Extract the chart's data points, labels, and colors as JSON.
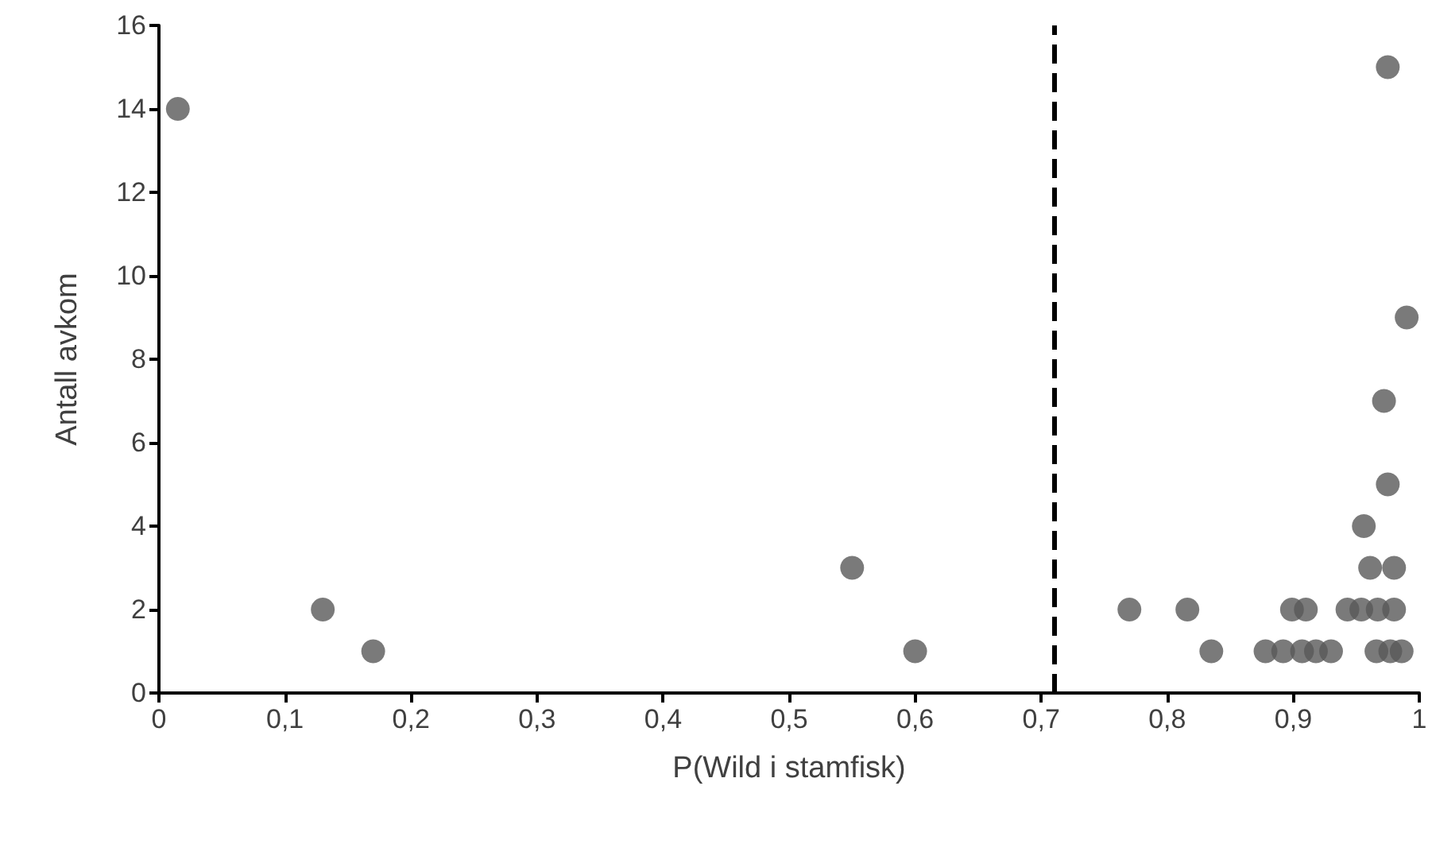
{
  "chart_data": {
    "type": "scatter",
    "xlabel": "P(Wild i stamfisk)",
    "ylabel": "Antall avkom",
    "series": [
      {
        "color": "#595959",
        "x": [
          0.015,
          0.13,
          0.17,
          0.55,
          0.6,
          0.77,
          0.816,
          0.835,
          0.878,
          0.892,
          0.907,
          0.918,
          0.93,
          0.966,
          0.977,
          0.986,
          0.899,
          0.91,
          0.943,
          0.954,
          0.967,
          0.98,
          0.961,
          0.98,
          0.956,
          0.975,
          0.972,
          0.99,
          0.975
        ],
        "values": [
          14,
          2,
          1,
          3,
          1,
          2,
          2,
          1,
          1,
          1,
          1,
          1,
          1,
          1,
          1,
          1,
          2,
          2,
          2,
          2,
          2,
          2,
          3,
          3,
          4,
          5,
          7,
          9,
          15
        ]
      }
    ],
    "xlim": [
      0,
      1
    ],
    "xticks": [
      0,
      {
        "value": 0.1,
        "label": "0,1"
      },
      {
        "value": 0.2,
        "label": "0,2"
      },
      {
        "value": 0.3,
        "label": "0,3"
      },
      {
        "value": 0.4,
        "label": "0,4"
      },
      {
        "value": 0.5,
        "label": "0,5"
      },
      {
        "value": 0.6,
        "label": "0,6"
      },
      {
        "value": 0.7,
        "label": "0,7"
      },
      {
        "value": 0.8,
        "label": "0,8"
      },
      {
        "value": 0.9,
        "label": "0,9"
      },
      1
    ],
    "ylim": [
      0,
      16
    ],
    "yticks": [
      0,
      2,
      4,
      6,
      8,
      10,
      12,
      14,
      16
    ],
    "ref_lines": [
      {
        "axis": "x",
        "value": 0.713,
        "color": "#000000",
        "line_style": "dashed"
      }
    ],
    "grid": false,
    "marker": "circle"
  }
}
